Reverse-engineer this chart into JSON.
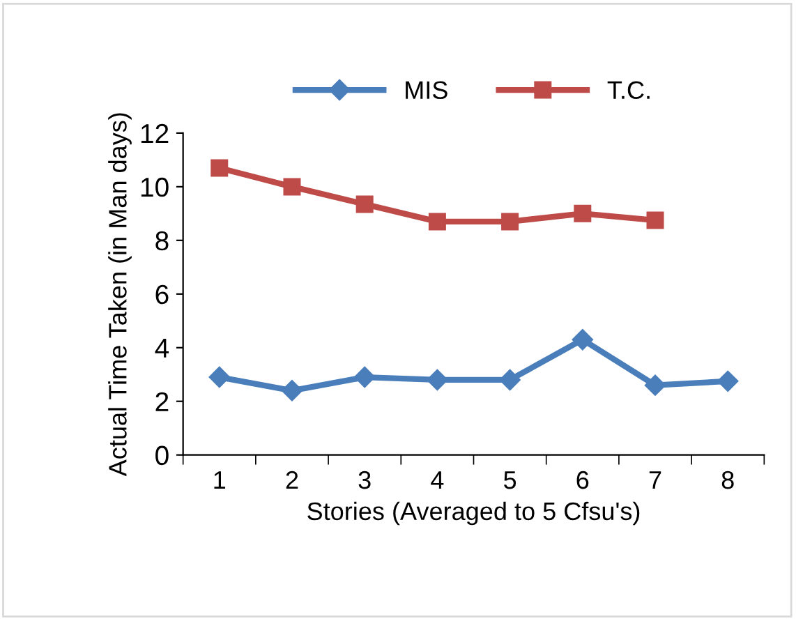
{
  "chart_data": {
    "type": "line",
    "xlabel": "Stories (Averaged to 5 Cfsu's)",
    "ylabel": "Actual Time Taken (in Man days)",
    "categories": [
      "1",
      "2",
      "3",
      "4",
      "5",
      "6",
      "7",
      "8"
    ],
    "series": [
      {
        "name": "MIS",
        "color": "#4a7ebb",
        "marker": "diamond",
        "values": [
          2.9,
          2.4,
          2.9,
          2.8,
          2.8,
          4.3,
          2.6,
          2.75
        ]
      },
      {
        "name": "T.C.",
        "color": "#be4b48",
        "marker": "square",
        "values": [
          10.7,
          10.0,
          9.35,
          8.7,
          8.7,
          9.0,
          8.75,
          null
        ]
      }
    ],
    "ylim": [
      0,
      12
    ],
    "yticks": [
      0,
      2,
      4,
      6,
      8,
      10,
      12
    ],
    "grid": false,
    "legend": "top",
    "line_style": "solid"
  }
}
